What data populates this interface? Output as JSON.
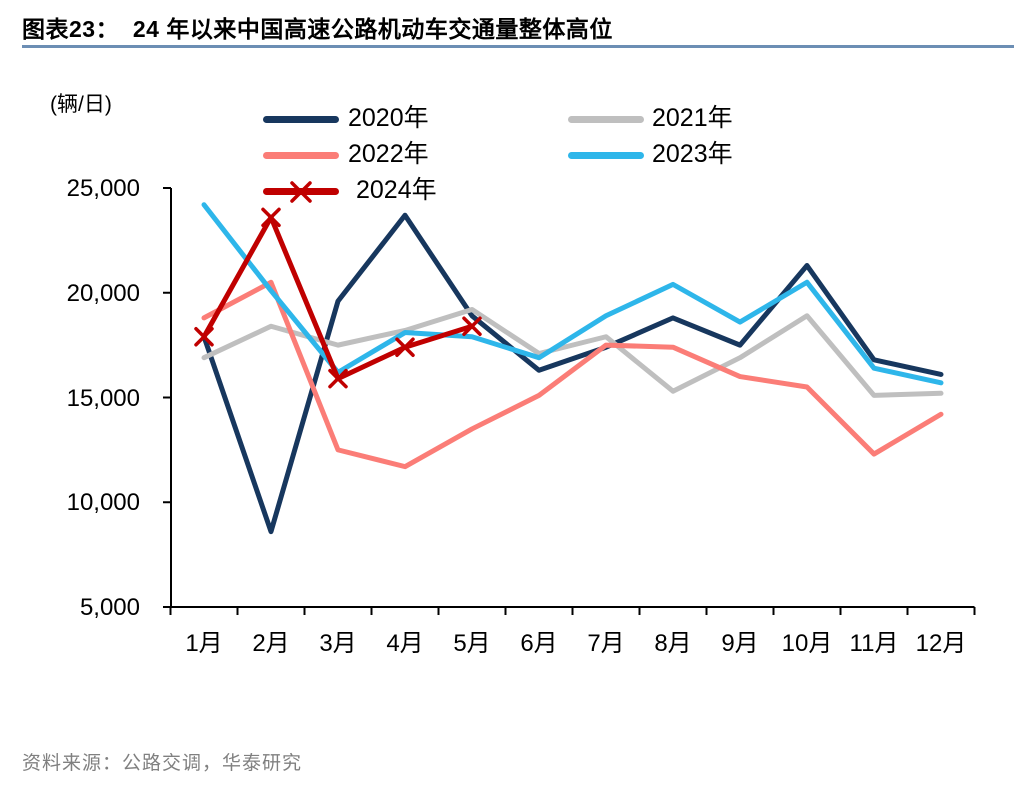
{
  "header": {
    "title": "图表23：  24 年以来中国高速公路机动车交通量整体高位"
  },
  "footer": {
    "source": "资料来源：公路交调，华泰研究"
  },
  "colors": {
    "title_rule": "#6C8EB4",
    "axis": "#000000",
    "source_text": "#808080"
  },
  "chart_data": {
    "type": "line",
    "title": "24 年以来中国高速公路机动车交通量整体高位",
    "unit_label": "(辆/日)",
    "xlabel": "",
    "ylabel": "辆/日",
    "ylim": [
      5000,
      25000
    ],
    "y_tick_step": 5000,
    "y_ticks": [
      "25,000",
      "20,000",
      "15,000",
      "10,000",
      "5,000"
    ],
    "grid": false,
    "legend_position": "top",
    "categories": [
      "1月",
      "2月",
      "3月",
      "4月",
      "5月",
      "6月",
      "7月",
      "8月",
      "9月",
      "10月",
      "11月",
      "12月"
    ],
    "series": [
      {
        "name": "2020年",
        "color": "#17375E",
        "marker": "none",
        "values": [
          17900,
          8600,
          19600,
          23700,
          18900,
          16300,
          17400,
          18800,
          17500,
          21300,
          16800,
          16100
        ]
      },
      {
        "name": "2021年",
        "color": "#BFBFBF",
        "marker": "none",
        "values": [
          16900,
          18400,
          17500,
          18200,
          19200,
          17100,
          17900,
          15300,
          16900,
          18900,
          15100,
          15200
        ]
      },
      {
        "name": "2022年",
        "color": "#FB7D77",
        "marker": "none",
        "values": [
          18800,
          20500,
          12500,
          11700,
          13500,
          15100,
          17500,
          17400,
          16000,
          15500,
          12300,
          14200
        ]
      },
      {
        "name": "2023年",
        "color": "#2EB6EA",
        "marker": "none",
        "values": [
          24200,
          20100,
          16200,
          18100,
          17900,
          16900,
          18900,
          20400,
          18600,
          20500,
          16400,
          15700
        ]
      },
      {
        "name": "2024年",
        "color": "#C00000",
        "marker": "x",
        "values": [
          17900,
          23600,
          15900,
          17400,
          18400
        ]
      }
    ]
  }
}
